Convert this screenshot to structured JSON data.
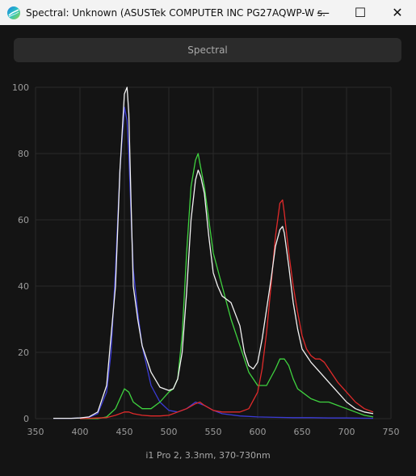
{
  "window": {
    "title": "Spectral: Unknown (ASUSTek COMPUTER INC PG27AQWP-W s...",
    "minimize_glyph": "—",
    "maximize_glyph": "☐",
    "close_glyph": "✕"
  },
  "toolbar": {
    "spectral_label": "Spectral"
  },
  "caption": "i1 Pro 2, 3.3nm, 370-730nm",
  "colors": {
    "white": "#f2f2f2",
    "blue": "#3b3bd6",
    "green": "#3fd23f",
    "red": "#e02a2a",
    "grid": "#2a2a2a"
  },
  "chart_data": {
    "type": "line",
    "xlabel": "",
    "ylabel": "",
    "xlim": [
      350,
      750
    ],
    "ylim": [
      0,
      100
    ],
    "x_ticks": [
      350,
      400,
      450,
      500,
      550,
      600,
      650,
      700,
      750
    ],
    "y_ticks": [
      0,
      20,
      40,
      60,
      80,
      100
    ],
    "grid": true,
    "series": [
      {
        "color": "white",
        "x": [
          370,
          380,
          390,
          400,
          410,
          420,
          430,
          440,
          445,
          450,
          453,
          455,
          458,
          460,
          465,
          470,
          480,
          490,
          500,
          505,
          510,
          515,
          520,
          525,
          530,
          533,
          536,
          540,
          545,
          550,
          555,
          560,
          570,
          580,
          585,
          590,
          595,
          600,
          605,
          610,
          615,
          620,
          625,
          628,
          630,
          635,
          640,
          645,
          650,
          660,
          670,
          680,
          690,
          700,
          710,
          720,
          730
        ],
        "y": [
          0.1,
          0.1,
          0.1,
          0.2,
          0.5,
          2,
          10,
          40,
          75,
          98,
          100,
          92,
          60,
          40,
          30,
          22,
          14,
          9.5,
          8.5,
          9,
          12,
          20,
          38,
          60,
          72,
          75,
          73,
          68,
          55,
          44,
          40,
          37,
          35,
          28,
          20,
          16,
          15,
          17,
          24,
          33,
          42,
          52,
          57,
          58,
          56,
          46,
          35,
          27,
          21,
          17,
          14,
          11,
          8,
          5,
          3,
          2,
          1.5
        ]
      },
      {
        "color": "blue",
        "x": [
          370,
          380,
          390,
          400,
          410,
          420,
          430,
          435,
          440,
          445,
          450,
          453,
          455,
          458,
          460,
          465,
          470,
          480,
          490,
          500,
          510,
          520,
          530,
          540,
          550,
          560,
          580,
          600,
          620,
          640,
          660,
          680,
          700,
          730
        ],
        "y": [
          0.1,
          0.1,
          0.1,
          0.2,
          0.4,
          1.5,
          8,
          20,
          45,
          75,
          94,
          90,
          80,
          58,
          45,
          32,
          22,
          10,
          5,
          2.5,
          2,
          3,
          5,
          4,
          2.5,
          1.5,
          0.8,
          0.5,
          0.4,
          0.3,
          0.3,
          0.2,
          0.2,
          0.1
        ]
      },
      {
        "color": "green",
        "x": [
          400,
          420,
          430,
          440,
          445,
          450,
          455,
          460,
          470,
          480,
          490,
          500,
          505,
          510,
          515,
          520,
          525,
          530,
          533,
          535,
          540,
          545,
          550,
          555,
          560,
          570,
          580,
          590,
          600,
          610,
          620,
          625,
          630,
          635,
          640,
          645,
          650,
          660,
          670,
          680,
          690,
          700,
          710,
          720,
          730
        ],
        "y": [
          0,
          0,
          0.5,
          3,
          6,
          9,
          8,
          5,
          3,
          3,
          5,
          8,
          9,
          12,
          25,
          50,
          70,
          78,
          80,
          77,
          70,
          60,
          50,
          45,
          40,
          30,
          22,
          14,
          10,
          10,
          15,
          18,
          18,
          16,
          12,
          9,
          8,
          6,
          5,
          5,
          4,
          3,
          2,
          1,
          0.5
        ]
      },
      {
        "color": "red",
        "x": [
          400,
          430,
          440,
          445,
          450,
          455,
          460,
          470,
          480,
          490,
          500,
          510,
          520,
          530,
          535,
          540,
          550,
          560,
          570,
          580,
          590,
          600,
          605,
          610,
          615,
          620,
          625,
          628,
          630,
          635,
          640,
          645,
          650,
          655,
          660,
          665,
          670,
          675,
          680,
          690,
          700,
          710,
          720,
          730
        ],
        "y": [
          0,
          0.3,
          1,
          1.5,
          2,
          2,
          1.5,
          1,
          0.8,
          0.8,
          1,
          2,
          3,
          4.5,
          5,
          4,
          2.5,
          2,
          2,
          2,
          3,
          8,
          15,
          26,
          40,
          55,
          65,
          66,
          62,
          50,
          40,
          32,
          25,
          21,
          19,
          18,
          18,
          17,
          15,
          11,
          8,
          5,
          3,
          2
        ]
      }
    ]
  }
}
